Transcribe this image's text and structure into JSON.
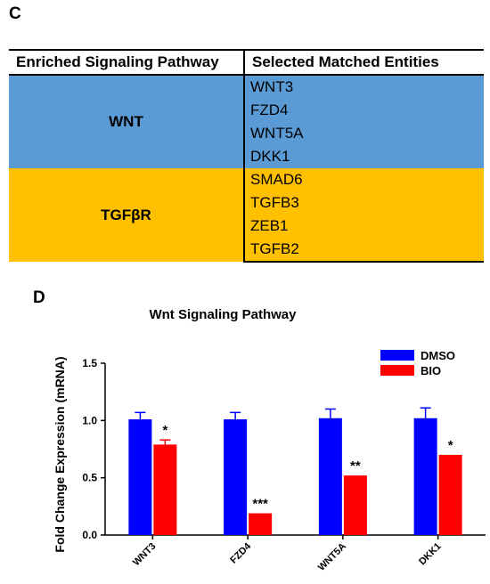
{
  "panel_c": {
    "label": "C"
  },
  "table": {
    "headers": [
      "Enriched Signaling Pathway",
      "Selected Matched Entities"
    ],
    "groups": [
      {
        "pathway": "WNT",
        "color": "#5B9BD5",
        "entities": [
          "WNT3",
          "FZD4",
          "WNT5A",
          "DKK1"
        ]
      },
      {
        "pathway": "TGFβR",
        "color": "#FFC000",
        "entities": [
          "SMAD6",
          "TGFB3",
          "ZEB1",
          "TGFB2"
        ]
      }
    ]
  },
  "panel_d": {
    "label": "D"
  },
  "chart_data": {
    "type": "bar",
    "title": "Wnt Signaling Pathway",
    "ylabel": "Fold Change Expression (mRNA)",
    "xlabel": "",
    "ylim": [
      0,
      1.5
    ],
    "yticks": [
      "0.0",
      "0.5",
      "1.0",
      "1.5"
    ],
    "categories": [
      "WNT3",
      "FZD4",
      "WNT5A",
      "DKK1"
    ],
    "series": [
      {
        "name": "DMSO",
        "color": "#0000FF",
        "values": [
          1.01,
          1.01,
          1.02,
          1.02
        ],
        "errors": [
          0.06,
          0.06,
          0.08,
          0.09
        ]
      },
      {
        "name": "BIO",
        "color": "#FF0000",
        "values": [
          0.79,
          0.19,
          0.52,
          0.7
        ],
        "errors": [
          0.04,
          0.0,
          0.0,
          0.0
        ]
      }
    ],
    "significance": [
      "*",
      "***",
      "**",
      "*"
    ],
    "legend_position": "top-right",
    "grid": false
  }
}
